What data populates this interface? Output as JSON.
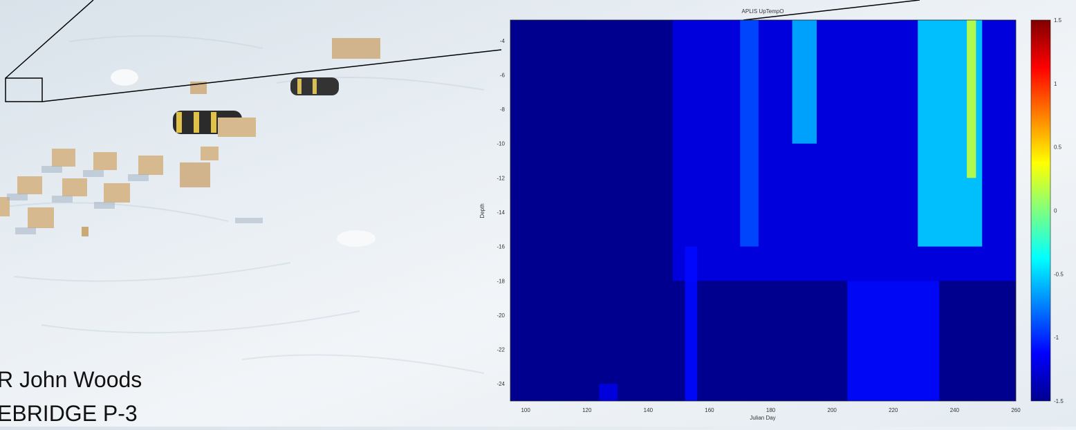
{
  "caption": {
    "line1": "R John Woods",
    "line2": "EBRIDGE P-3"
  },
  "chart_data": {
    "type": "heatmap",
    "title": "APLIS UpTempO",
    "xlabel": "Julian Day",
    "ylabel": "Depth",
    "xlim": [
      95,
      260
    ],
    "ylim": [
      -25,
      -2.8
    ],
    "x_ticks": [
      100,
      120,
      140,
      160,
      180,
      200,
      220,
      240,
      260
    ],
    "y_ticks": [
      -4,
      -6,
      -8,
      -10,
      -12,
      -14,
      -16,
      -18,
      -20,
      -22,
      -24
    ],
    "colorbar": {
      "colormap": "jet",
      "range": [
        -1.5,
        1.5
      ],
      "ticks": [
        1.5,
        1,
        0.5,
        0,
        -0.5,
        -1,
        -1.5
      ]
    },
    "baseline_value": -1.5,
    "features": [
      {
        "x_start": 148,
        "x_end": 260,
        "depth_top": -2.8,
        "depth_bottom": -18,
        "value": -1.2
      },
      {
        "x_start": 170,
        "x_end": 176,
        "depth_top": -2.8,
        "depth_bottom": -16,
        "value": -0.9
      },
      {
        "x_start": 187,
        "x_end": 195,
        "depth_top": -2.8,
        "depth_bottom": -10,
        "value": -0.6
      },
      {
        "x_start": 228,
        "x_end": 249,
        "depth_top": -2.8,
        "depth_bottom": -16,
        "value": -0.5
      },
      {
        "x_start": 244,
        "x_end": 247,
        "depth_top": -2.8,
        "depth_bottom": -12,
        "value": 0.2
      },
      {
        "x_start": 152,
        "x_end": 156,
        "depth_top": -16,
        "depth_bottom": -25,
        "value": -1.1
      },
      {
        "x_start": 205,
        "x_end": 235,
        "depth_top": -18,
        "depth_bottom": -25,
        "value": -1.1
      },
      {
        "x_start": 124,
        "x_end": 130,
        "depth_top": -24,
        "depth_bottom": -25,
        "value": -1.2
      }
    ]
  },
  "colors": {
    "snow": "#edf2f6",
    "hut": "#d2b48c",
    "tent_dark": "#2b2b2b",
    "jet_min": "#00008f",
    "jet_max": "#800000"
  }
}
